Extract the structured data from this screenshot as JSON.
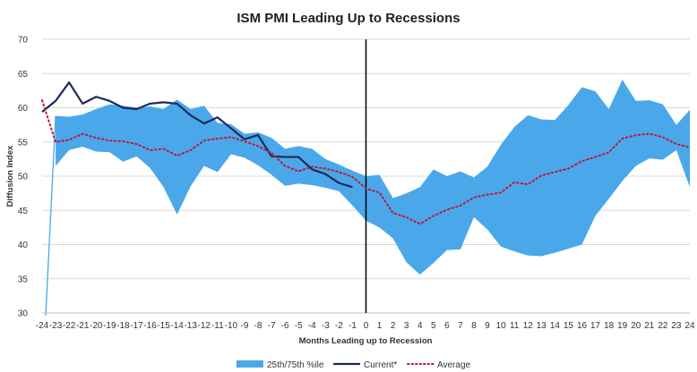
{
  "chart_data": {
    "type": "line",
    "title": "ISM PMI Leading Up to Recessions",
    "xlabel": "Months Leading up to Recession",
    "ylabel": "Diffusion Index",
    "x": [
      -24,
      -23,
      -22,
      -21,
      -20,
      -19,
      -18,
      -17,
      -16,
      -15,
      -14,
      -13,
      -12,
      -11,
      -10,
      -9,
      -8,
      -7,
      -6,
      -5,
      -4,
      -3,
      -2,
      -1,
      0,
      1,
      2,
      3,
      4,
      5,
      6,
      7,
      8,
      9,
      10,
      11,
      12,
      13,
      14,
      15,
      16,
      17,
      18,
      19,
      20,
      21,
      22,
      23,
      24
    ],
    "xlim": [
      -24,
      24
    ],
    "ylim": [
      30,
      70
    ],
    "yticks": [
      30,
      35,
      40,
      45,
      50,
      55,
      60,
      65,
      70
    ],
    "recession_marker_x": 0,
    "band": {
      "name": "25th/75th %ile",
      "color": "#4aa8ea",
      "upper": [
        null,
        58.8,
        58.7,
        59.0,
        59.8,
        60.5,
        60.3,
        60.0,
        60.2,
        59.8,
        61.2,
        59.8,
        60.3,
        57.8,
        57.6,
        56.2,
        56.4,
        55.6,
        54.0,
        54.4,
        54.0,
        52.5,
        51.7,
        50.8,
        50.0,
        50.2,
        46.8,
        47.5,
        48.4,
        51.0,
        50.0,
        50.7,
        49.8,
        51.4,
        54.6,
        57.2,
        58.9,
        58.3,
        58.2,
        60.4,
        63.0,
        62.4,
        59.8,
        64.1,
        61.0,
        61.1,
        60.5,
        57.5,
        59.7
      ],
      "lower": [
        null,
        51.5,
        53.8,
        54.3,
        53.6,
        53.5,
        52.1,
        52.9,
        51.2,
        48.4,
        44.4,
        48.5,
        51.5,
        50.6,
        53.2,
        52.7,
        51.6,
        50.2,
        48.6,
        48.9,
        48.7,
        48.3,
        47.8,
        45.7,
        43.5,
        42.5,
        40.9,
        37.4,
        35.6,
        37.3,
        39.2,
        39.3,
        44.0,
        42.2,
        39.7,
        39.0,
        38.4,
        38.3,
        38.8,
        39.4,
        40.0,
        44.2,
        46.7,
        49.3,
        51.5,
        52.6,
        52.4,
        53.8,
        48.4
      ]
    },
    "band_spike": {
      "x": [
        -24,
        -23
      ],
      "from": 29.6,
      "to": 58.8
    },
    "series": [
      {
        "name": "Current*",
        "color": "#1c2a5c",
        "values": [
          59.4,
          61.0,
          63.7,
          60.6,
          61.6,
          61.0,
          60.0,
          59.8,
          60.6,
          60.8,
          60.6,
          58.9,
          57.7,
          58.6,
          57.0,
          55.4,
          56.0,
          52.9,
          52.8,
          52.8,
          51.0,
          50.3,
          49.0,
          48.4,
          null,
          null,
          null,
          null,
          null,
          null,
          null,
          null,
          null,
          null,
          null,
          null,
          null,
          null,
          null,
          null,
          null,
          null,
          null,
          null,
          null,
          null,
          null,
          null,
          null
        ]
      },
      {
        "name": "Average",
        "color": "#c0163a",
        "values": [
          61.1,
          55.0,
          55.3,
          56.2,
          55.6,
          55.2,
          55.1,
          54.7,
          53.8,
          54.0,
          53.0,
          53.8,
          55.2,
          55.5,
          55.7,
          55.1,
          54.4,
          53.4,
          51.5,
          50.7,
          51.4,
          51.1,
          50.6,
          49.9,
          48.2,
          47.6,
          44.6,
          44.0,
          43.0,
          44.2,
          45.1,
          45.7,
          46.9,
          47.3,
          47.6,
          49.1,
          48.8,
          50.1,
          50.6,
          51.1,
          52.2,
          52.8,
          53.5,
          55.5,
          56.0,
          56.2,
          55.7,
          54.7,
          54.2
        ]
      }
    ],
    "legend": {
      "position": "bottom-center",
      "entries": [
        "25th/75th %ile",
        "Current*",
        "Average"
      ]
    }
  }
}
